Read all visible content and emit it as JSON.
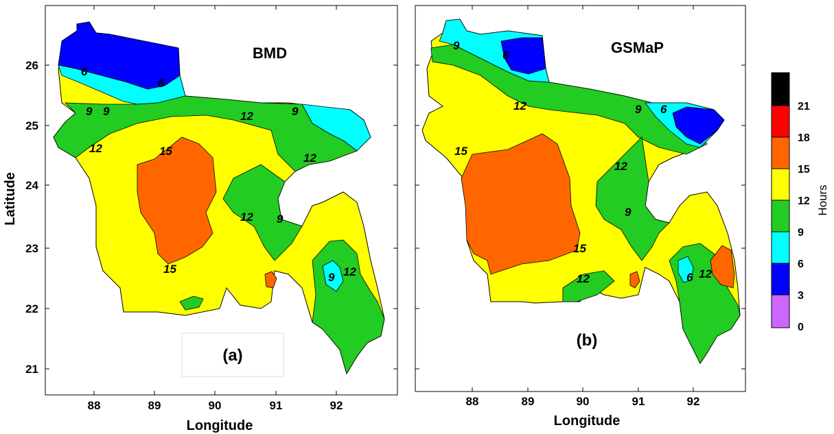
{
  "figure": {
    "axes": {
      "xlabel": "Longitude",
      "ylabel": "Latitude",
      "lon_ticks": [
        "88",
        "89",
        "90",
        "91",
        "92"
      ],
      "lat_ticks": [
        "26",
        "25",
        "24",
        "23",
        "22",
        "21"
      ]
    },
    "panels": [
      {
        "title": "BMD",
        "tag": "(a)",
        "contour_labels": [
          "6",
          "6",
          "9",
          "9",
          "12",
          "9",
          "12",
          "15",
          "12",
          "9",
          "15",
          "9",
          "12",
          "12"
        ]
      },
      {
        "title": "GSMaP",
        "tag": "(b)",
        "contour_labels": [
          "9",
          "6",
          "12",
          "9",
          "6",
          "15",
          "12",
          "9",
          "15",
          "12",
          "6",
          "12"
        ]
      }
    ],
    "legend": {
      "title": "Hours",
      "labels": [
        "21",
        "18",
        "15",
        "12",
        "9",
        "6",
        "3",
        "0"
      ],
      "colors": [
        "#000000",
        "#ff0000",
        "#ff6600",
        "#ffff00",
        "#22cc22",
        "#00ffff",
        "#0000ff",
        "#cc66ff"
      ]
    }
  }
}
